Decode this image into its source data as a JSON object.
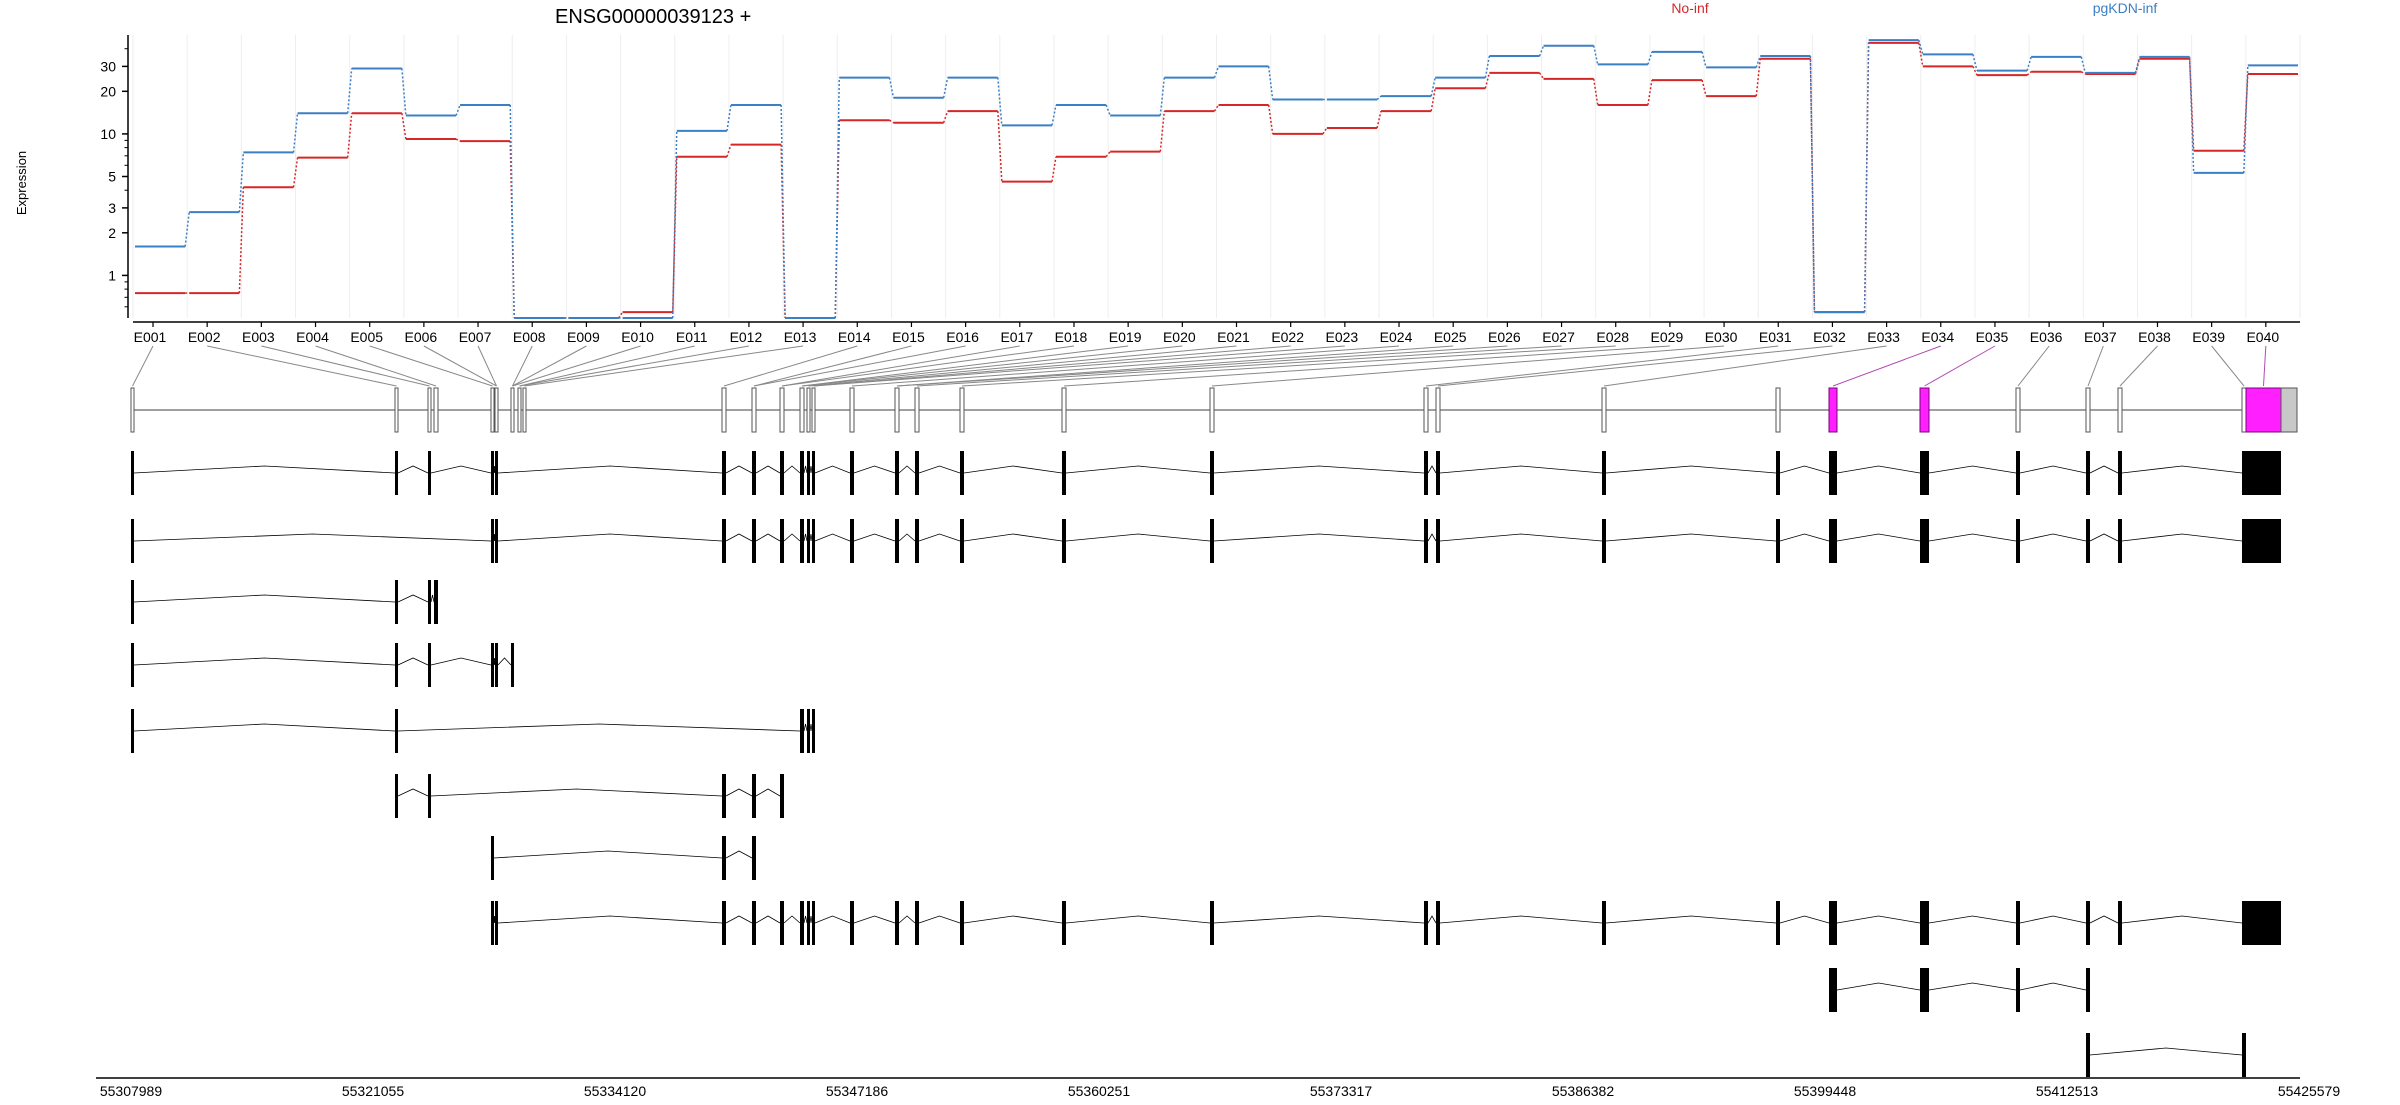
{
  "chart_data": {
    "type": "line",
    "title": "ENSG00000039123 +",
    "ylabel": "Expression",
    "yscale": "log",
    "ylim": [
      0.5,
      50
    ],
    "grid": true,
    "legend_placement": "top",
    "y_ticks": [
      {
        "value": 1,
        "label": "1"
      },
      {
        "value": 2,
        "label": "2"
      },
      {
        "value": 3,
        "label": "3"
      },
      {
        "value": 5,
        "label": "5"
      },
      {
        "value": 10,
        "label": "10"
      },
      {
        "value": 20,
        "label": "20"
      },
      {
        "value": 30,
        "label": "30"
      }
    ],
    "categories": [
      "E001",
      "E002",
      "E003",
      "E004",
      "E005",
      "E006",
      "E007",
      "E008",
      "E009",
      "E010",
      "E011",
      "E012",
      "E013",
      "E014",
      "E015",
      "E016",
      "E017",
      "E018",
      "E019",
      "E020",
      "E021",
      "E022",
      "E023",
      "E024",
      "E025",
      "E026",
      "E027",
      "E028",
      "E029",
      "E030",
      "E031",
      "E032",
      "E033",
      "E034",
      "E035",
      "E036",
      "E037",
      "E038",
      "E039",
      "E040"
    ],
    "series": [
      {
        "name": "No-inf",
        "color": "#d62728",
        "values": [
          0.75,
          0.75,
          4.2,
          6.8,
          14,
          9.2,
          8.9,
          0.5,
          0.5,
          0.55,
          6.9,
          8.4,
          0.5,
          12.5,
          12,
          14.5,
          4.6,
          6.9,
          7.5,
          14.5,
          16,
          10,
          11,
          14.5,
          21,
          27,
          24.5,
          16,
          24,
          18.5,
          34,
          0.55,
          44,
          30,
          26,
          27.5,
          26.5,
          34,
          7.6,
          26.5
        ]
      },
      {
        "name": "pgKDN-inf",
        "color": "#3b7fc4",
        "values": [
          1.6,
          2.8,
          7.4,
          14,
          29,
          13.5,
          16,
          0.5,
          0.5,
          0.5,
          10.5,
          16,
          0.5,
          25,
          18,
          25,
          11.5,
          16,
          13.5,
          25,
          30,
          17.5,
          17.5,
          18.5,
          25,
          35.5,
          42,
          31,
          38,
          29.5,
          35.5,
          0.55,
          46,
          36.5,
          28,
          35,
          27,
          35,
          5.3,
          30.5
        ]
      }
    ],
    "gene_track": {
      "coordinate_ticks": [
        "55307989",
        "55321055",
        "55334120",
        "55347186",
        "55360251",
        "55373317",
        "55386382",
        "55399448",
        "55412513",
        "55425579"
      ],
      "highlight_color": "#ff1fff",
      "highlighted_exons": [
        "E032",
        "E034",
        "E040"
      ]
    }
  }
}
